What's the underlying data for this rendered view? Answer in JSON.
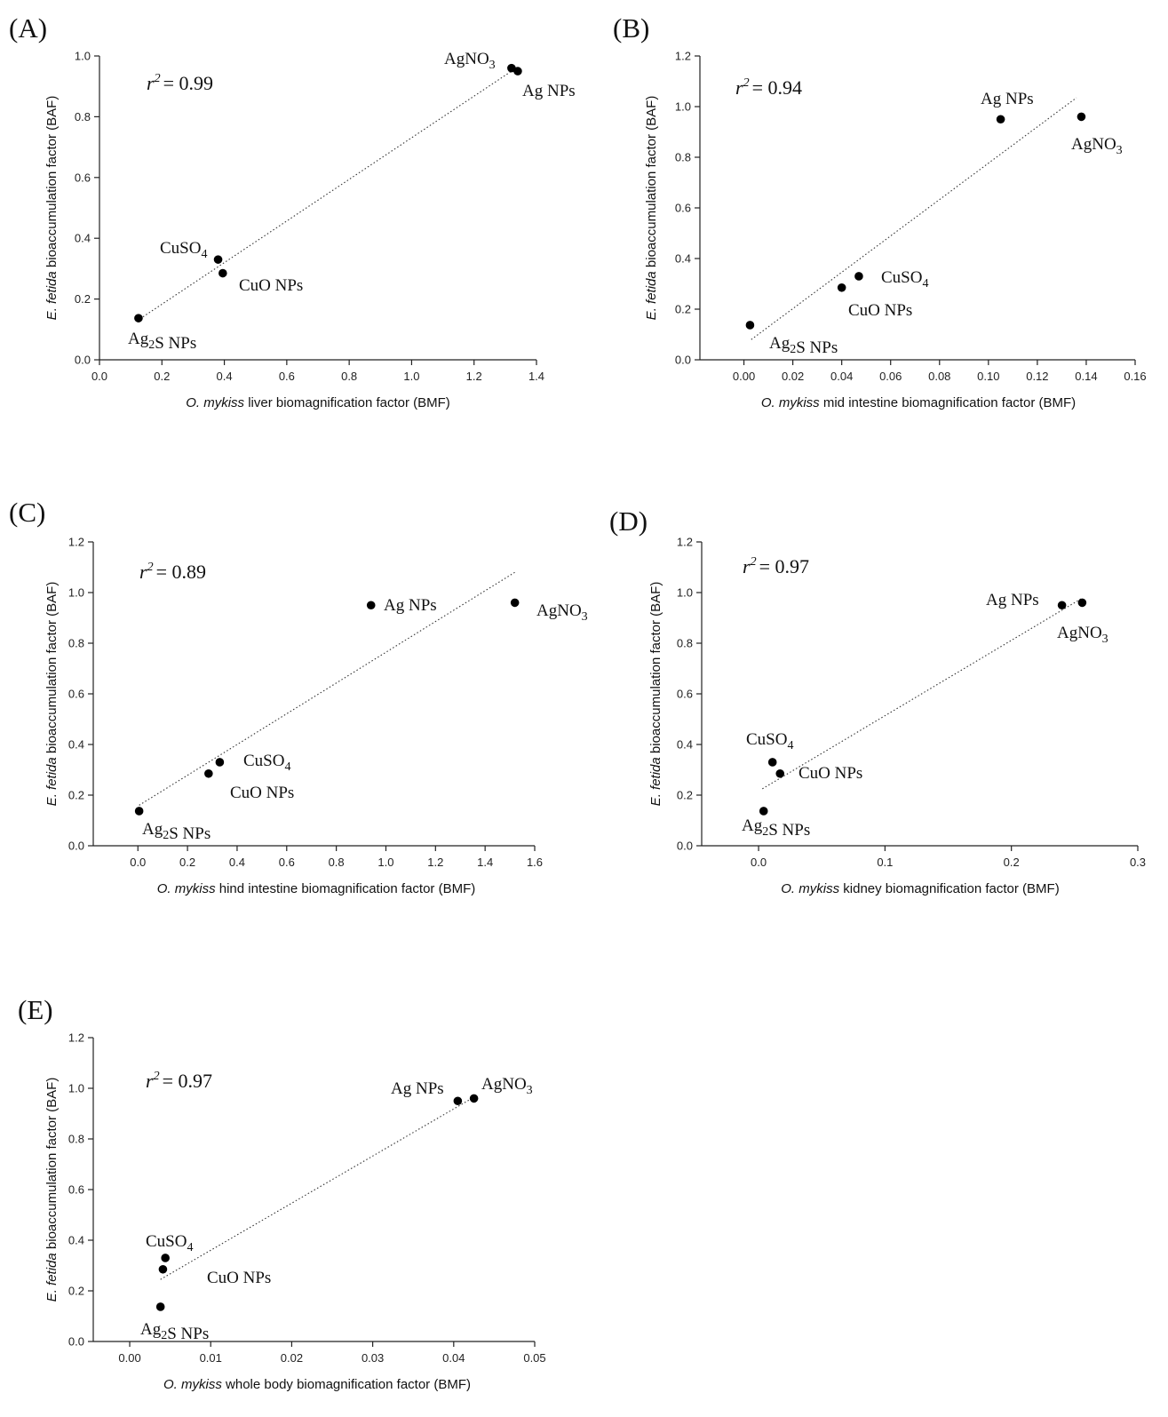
{
  "chart_data": [
    {
      "panel": "(A)",
      "type": "scatter",
      "r2_label": "r",
      "r2_value": "= 0.99",
      "xlabel_italic": "O. mykiss",
      "xlabel_rest": " liver biomagnification factor (BMF)",
      "ylabel_italic": "E. fetida",
      "ylabel_rest": " bioaccumulation factor (BAF)",
      "xlim": [
        0,
        1.4
      ],
      "ylim": [
        0,
        1.0
      ],
      "xticks": [
        "0.0",
        "0.2",
        "0.4",
        "0.6",
        "0.8",
        "1.0",
        "1.2",
        "1.4"
      ],
      "yticks": [
        "0.0",
        "0.2",
        "0.4",
        "0.6",
        "0.8",
        "1.0"
      ],
      "points": [
        {
          "name": "AgNO3",
          "x": 1.32,
          "y": 0.96
        },
        {
          "name": "Ag NPs",
          "x": 1.34,
          "y": 0.95
        },
        {
          "name": "CuSO4",
          "x": 0.38,
          "y": 0.33
        },
        {
          "name": "CuO NPs",
          "x": 0.395,
          "y": 0.285
        },
        {
          "name": "Ag2S NPs",
          "x": 0.125,
          "y": 0.137
        }
      ],
      "trend": [
        [
          0.13,
          0.135
        ],
        [
          1.32,
          0.95
        ]
      ]
    },
    {
      "panel": "(B)",
      "type": "scatter",
      "r2_label": "r",
      "r2_value": "= 0.94",
      "xlabel_italic": "O. mykiss",
      "xlabel_rest": " mid intestine biomagnification factor (BMF)",
      "ylabel_italic": "E. fetida",
      "ylabel_rest": " bioaccumulation factor (BAF)",
      "xlim": [
        -0.018,
        0.16
      ],
      "ylim": [
        0,
        1.2
      ],
      "xticks": [
        "0.00",
        "0.02",
        "0.04",
        "0.06",
        "0.08",
        "0.10",
        "0.12",
        "0.14",
        "0.16"
      ],
      "yticks": [
        "0.0",
        "0.2",
        "0.4",
        "0.6",
        "0.8",
        "1.0",
        "1.2"
      ],
      "points": [
        {
          "name": "Ag NPs",
          "x": 0.105,
          "y": 0.95
        },
        {
          "name": "AgNO3",
          "x": 0.138,
          "y": 0.96
        },
        {
          "name": "CuSO4",
          "x": 0.047,
          "y": 0.33
        },
        {
          "name": "CuO NPs",
          "x": 0.04,
          "y": 0.285
        },
        {
          "name": "Ag2S NPs",
          "x": 0.0025,
          "y": 0.137
        }
      ],
      "trend": [
        [
          0.003,
          0.08
        ],
        [
          0.136,
          1.035
        ]
      ]
    },
    {
      "panel": "(C)",
      "type": "scatter",
      "r2_label": "r",
      "r2_value": "= 0.89",
      "xlabel_italic": "O. mykiss",
      "xlabel_rest": " hind intestine biomagnification factor (BMF)",
      "ylabel_italic": "E. fetida",
      "ylabel_rest": " bioaccumulation factor (BAF)",
      "xlim": [
        -0.18,
        1.6
      ],
      "ylim": [
        0,
        1.2
      ],
      "xticks": [
        "0.0",
        "0.2",
        "0.4",
        "0.6",
        "0.8",
        "1.0",
        "1.2",
        "1.4",
        "1.6"
      ],
      "yticks": [
        "0.0",
        "0.2",
        "0.4",
        "0.6",
        "0.8",
        "1.0",
        "1.2"
      ],
      "points": [
        {
          "name": "Ag NPs",
          "x": 0.94,
          "y": 0.95
        },
        {
          "name": "AgNO3",
          "x": 1.52,
          "y": 0.96
        },
        {
          "name": "CuSO4",
          "x": 0.33,
          "y": 0.33
        },
        {
          "name": "CuO NPs",
          "x": 0.285,
          "y": 0.285
        },
        {
          "name": "Ag2S NPs",
          "x": 0.005,
          "y": 0.137
        }
      ],
      "trend": [
        [
          0.005,
          0.16
        ],
        [
          1.52,
          1.08
        ]
      ]
    },
    {
      "panel": "(D)",
      "type": "scatter",
      "r2_label": "r",
      "r2_value": "= 0.97",
      "xlabel_italic": "O. mykiss",
      "xlabel_rest": " kidney biomagnification factor (BMF)",
      "ylabel_italic": "E. fetida",
      "ylabel_rest": " bioaccumulation factor (BAF)",
      "xlim": [
        -0.045,
        0.3
      ],
      "ylim": [
        0,
        1.2
      ],
      "xticks": [
        "0.0",
        "0.1",
        "0.2",
        "0.3"
      ],
      "yticks": [
        "0.0",
        "0.2",
        "0.4",
        "0.6",
        "0.8",
        "1.0",
        "1.2"
      ],
      "points": [
        {
          "name": "Ag NPs",
          "x": 0.24,
          "y": 0.95
        },
        {
          "name": "AgNO3",
          "x": 0.256,
          "y": 0.96
        },
        {
          "name": "CuSO4",
          "x": 0.011,
          "y": 0.33
        },
        {
          "name": "CuO NPs",
          "x": 0.017,
          "y": 0.285
        },
        {
          "name": "Ag2S NPs",
          "x": 0.004,
          "y": 0.137
        }
      ],
      "trend": [
        [
          0.003,
          0.225
        ],
        [
          0.255,
          0.975
        ]
      ]
    },
    {
      "panel": "(E)",
      "type": "scatter",
      "r2_label": "r",
      "r2_value": "= 0.97",
      "xlabel_italic": "O. mykiss",
      "xlabel_rest": " whole body biomagnification factor (BMF)",
      "ylabel_italic": "E. fetida",
      "ylabel_rest": " bioaccumulation factor (BAF)",
      "xlim": [
        -0.0045,
        0.05
      ],
      "ylim": [
        0,
        1.2
      ],
      "xticks": [
        "0.00",
        "0.01",
        "0.02",
        "0.03",
        "0.04",
        "0.05"
      ],
      "yticks": [
        "0.0",
        "0.2",
        "0.4",
        "0.6",
        "0.8",
        "1.0",
        "1.2"
      ],
      "points": [
        {
          "name": "Ag NPs",
          "x": 0.0405,
          "y": 0.95
        },
        {
          "name": "AgNO3",
          "x": 0.0425,
          "y": 0.96
        },
        {
          "name": "CuSO4",
          "x": 0.0044,
          "y": 0.33
        },
        {
          "name": "CuO NPs",
          "x": 0.0041,
          "y": 0.285
        },
        {
          "name": "Ag2S NPs",
          "x": 0.0038,
          "y": 0.137
        }
      ],
      "trend": [
        [
          0.0038,
          0.245
        ],
        [
          0.0425,
          0.965
        ]
      ]
    }
  ]
}
